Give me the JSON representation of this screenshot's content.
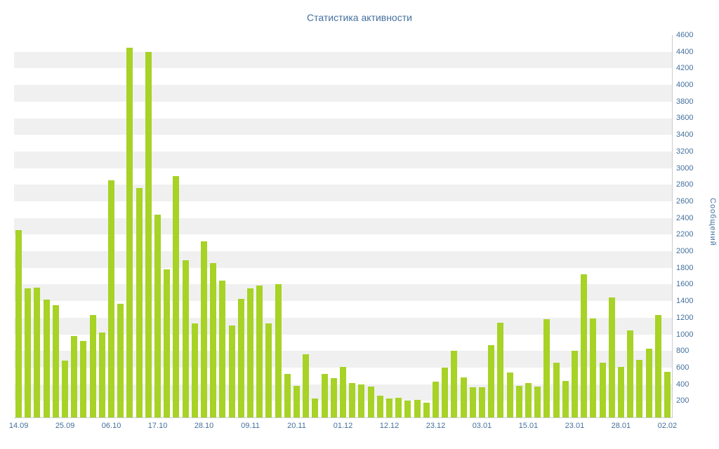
{
  "chart_data": {
    "type": "bar",
    "title": "Статистика активности",
    "xlabel": "",
    "ylabel": "Сообщений",
    "ylim": [
      0,
      4600
    ],
    "ytick_step": 200,
    "ytick_labels_from": 200,
    "grid": "alternating horizontal stripes every 200 units",
    "legend": "none",
    "x_tick_labels": [
      "14.09",
      "25.09",
      "06.10",
      "17.10",
      "28.10",
      "09.11",
      "20.11",
      "01.12",
      "12.12",
      "23.12",
      "03.01",
      "15.01",
      "23.01",
      "28.01",
      "02.02"
    ],
    "x_tick_every": 5,
    "values": [
      2250,
      1550,
      1560,
      1420,
      1350,
      680,
      980,
      920,
      1230,
      1020,
      2850,
      1370,
      4450,
      2760,
      4400,
      2440,
      1780,
      2900,
      1890,
      1130,
      2120,
      1860,
      1650,
      1110,
      1430,
      1550,
      1590,
      1130,
      1600,
      520,
      380,
      760,
      230,
      520,
      470,
      610,
      410,
      400,
      370,
      260,
      230,
      240,
      200,
      210,
      180,
      430,
      600,
      800,
      480,
      360,
      360,
      870,
      1140,
      540,
      380,
      410,
      370,
      1180,
      660,
      440,
      800,
      1720,
      1190,
      660,
      1440,
      610,
      1050,
      690,
      830,
      1230,
      550
    ],
    "colors": {
      "bar": "#a7d226",
      "label": "#44709d",
      "stripe": "#f0f0f0",
      "axis": "#cccccc",
      "background": "#ffffff"
    }
  }
}
